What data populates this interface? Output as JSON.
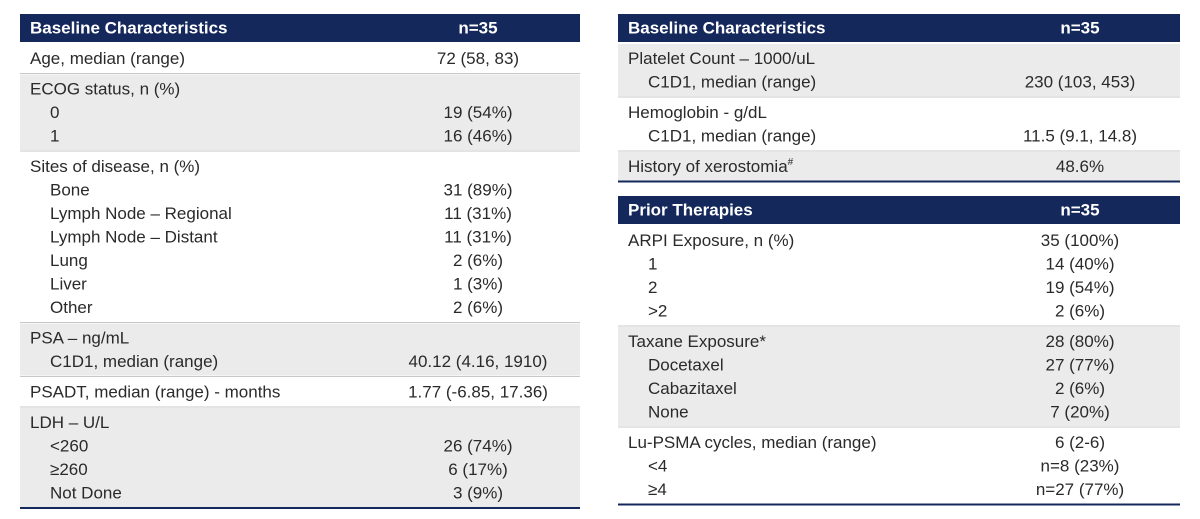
{
  "tables": [
    {
      "header": [
        "Baseline Characteristics",
        "n=35"
      ],
      "groups": [
        {
          "rows": [
            {
              "label": "Age, median (range)",
              "value": "72 (58, 83)"
            }
          ]
        },
        {
          "rows": [
            {
              "label": "ECOG status, n (%)"
            },
            {
              "label": "0",
              "value": "19 (54%)"
            },
            {
              "label": "1",
              "value": "16 (46%)"
            }
          ]
        },
        {
          "rows": [
            {
              "label": "Sites of disease, n (%)"
            },
            {
              "label": "Bone",
              "value": "31 (89%)"
            },
            {
              "label": "Lymph Node – Regional",
              "value": "11 (31%)"
            },
            {
              "label": "Lymph Node – Distant",
              "value": "11 (31%)"
            },
            {
              "label": "Lung",
              "value": "2 (6%)"
            },
            {
              "label": "Liver",
              "value": "1 (3%)"
            },
            {
              "label": "Other",
              "value": "2 (6%)"
            }
          ]
        },
        {
          "rows": [
            {
              "label": "PSA – ng/mL"
            },
            {
              "label": "C1D1, median (range)",
              "value": "40.12 (4.16, 1910)"
            }
          ]
        },
        {
          "rows": [
            {
              "label": "PSADT, median (range) - months",
              "value": "1.77 (-6.85, 17.36)"
            }
          ]
        },
        {
          "rows": [
            {
              "label": "LDH – U/L"
            },
            {
              "label": "<260",
              "value": "26 (74%)"
            },
            {
              "label": "≥260",
              "value": "6 (17%)"
            },
            {
              "label": "Not Done",
              "value": "3 (9%)"
            }
          ]
        }
      ]
    },
    {
      "header": [
        "Baseline Characteristics",
        "n=35"
      ],
      "groups": [
        {
          "rows": [
            {
              "label": "Platelet Count – 1000/uL"
            },
            {
              "label": "C1D1, median (range)",
              "value": "230 (103, 453)"
            }
          ]
        },
        {
          "rows": [
            {
              "label": "Hemoglobin - g/dL"
            },
            {
              "label": "C1D1, median (range)",
              "value": "11.5 (9.1, 14.8)"
            }
          ]
        },
        {
          "rows": [
            {
              "label": "History of xerostomia",
              "superscript": "#",
              "value": "48.6%"
            }
          ]
        }
      ]
    },
    {
      "header": [
        "Prior Therapies",
        "n=35"
      ],
      "groups": [
        {
          "rows": [
            {
              "label": "ARPI Exposure, n (%)",
              "value": "35 (100%)"
            },
            {
              "label": "1",
              "value": "14 (40%)"
            },
            {
              "label": "2",
              "value": "19 (54%)"
            },
            {
              "label": ">2",
              "value": "2 (6%)"
            }
          ]
        },
        {
          "rows": [
            {
              "label": "Taxane Exposure*",
              "value": "28 (80%)"
            },
            {
              "label": "Docetaxel",
              "value": "27 (77%)"
            },
            {
              "label": "Cabazitaxel",
              "value": "2 (6%)"
            },
            {
              "label": "None",
              "value": "7 (20%)"
            }
          ]
        },
        {
          "rows": [
            {
              "label": "Lu-PSMA cycles, median (range)",
              "value": "6 (2-6)"
            },
            {
              "label": "<4",
              "value": "n=8 (23%)"
            },
            {
              "label": "≥4",
              "value": "n=27 (77%)"
            }
          ]
        }
      ]
    }
  ]
}
